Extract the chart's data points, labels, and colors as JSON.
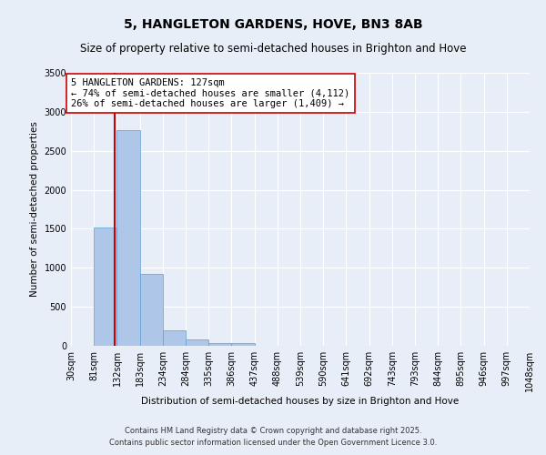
{
  "title": "5, HANGLETON GARDENS, HOVE, BN3 8AB",
  "subtitle": "Size of property relative to semi-detached houses in Brighton and Hove",
  "xlabel": "Distribution of semi-detached houses by size in Brighton and Hove",
  "ylabel": "Number of semi-detached properties",
  "footnote1": "Contains HM Land Registry data © Crown copyright and database right 2025.",
  "footnote2": "Contains public sector information licensed under the Open Government Licence 3.0.",
  "bins": [
    30,
    81,
    132,
    183,
    234,
    284,
    335,
    386,
    437,
    488,
    539,
    590,
    641,
    692,
    743,
    793,
    844,
    895,
    946,
    997,
    1048
  ],
  "bin_labels": [
    "30sqm",
    "81sqm",
    "132sqm",
    "183sqm",
    "234sqm",
    "284sqm",
    "335sqm",
    "386sqm",
    "437sqm",
    "488sqm",
    "539sqm",
    "590sqm",
    "641sqm",
    "692sqm",
    "743sqm",
    "793sqm",
    "844sqm",
    "895sqm",
    "946sqm",
    "997sqm",
    "1048sqm"
  ],
  "values": [
    0,
    1520,
    2760,
    920,
    200,
    80,
    35,
    30,
    0,
    0,
    0,
    0,
    0,
    0,
    0,
    0,
    0,
    0,
    0,
    0
  ],
  "bar_color": "#aec6e8",
  "bar_edge_color": "#5a9fd4",
  "property_size": 127,
  "red_line_color": "#cc0000",
  "annotation_text": "5 HANGLETON GARDENS: 127sqm\n← 74% of semi-detached houses are smaller (4,112)\n26% of semi-detached houses are larger (1,409) →",
  "annotation_box_color": "#ffffff",
  "annotation_border_color": "#cc0000",
  "background_color": "#e8eef7",
  "plot_bg_color": "#e8eef7",
  "ylim": [
    0,
    3500
  ],
  "yticks": [
    0,
    500,
    1000,
    1500,
    2000,
    2500,
    3000,
    3500
  ],
  "grid_color": "#ffffff",
  "title_fontsize": 10,
  "subtitle_fontsize": 8.5,
  "annotation_fontsize": 7.5,
  "axis_label_fontsize": 7.5,
  "tick_fontsize": 7,
  "footnote_fontsize": 6
}
